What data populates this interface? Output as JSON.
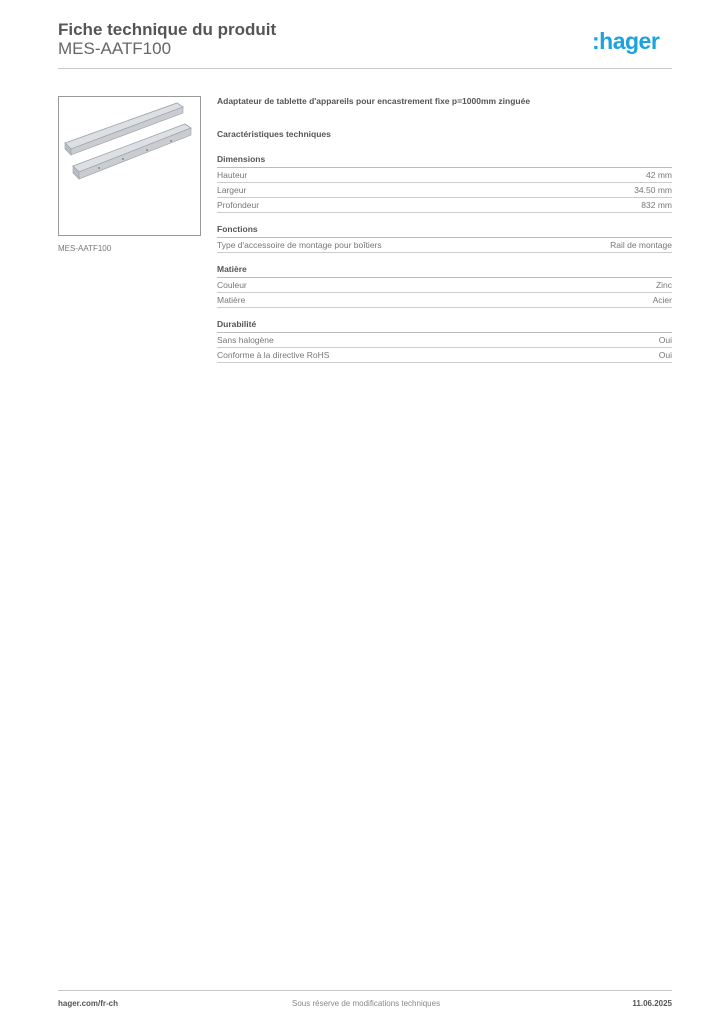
{
  "header": {
    "title": "Fiche technique du produit",
    "subtitle": "MES-AATF100",
    "logo": ":hager",
    "logo_color": "#1aa3dd"
  },
  "image": {
    "caption": "MES-AATF100"
  },
  "description": "Adaptateur de tablette d'appareils pour encastrement fixe p=1000mm zinguée",
  "characteristics_title": "Caractéristiques techniques",
  "sections": [
    {
      "title": "Dimensions",
      "rows": [
        {
          "label": "Hauteur",
          "value": "42 mm"
        },
        {
          "label": "Largeur",
          "value": "34.50 mm"
        },
        {
          "label": "Profondeur",
          "value": "832 mm"
        }
      ]
    },
    {
      "title": "Fonctions",
      "rows": [
        {
          "label": "Type d'accessoire de montage pour boîtiers",
          "value": "Rail de montage"
        }
      ]
    },
    {
      "title": "Matière",
      "rows": [
        {
          "label": "Couleur",
          "value": "Zinc"
        },
        {
          "label": "Matière",
          "value": "Acier"
        }
      ]
    },
    {
      "title": "Durabilité",
      "rows": [
        {
          "label": "Sans halogène",
          "value": "Oui"
        },
        {
          "label": "Conforme à la directive RoHS",
          "value": "Oui"
        }
      ]
    }
  ],
  "footer": {
    "website": "hager.com/fr-ch",
    "notice": "Sous réserve de modifications techniques",
    "date": "11.06.2025"
  }
}
